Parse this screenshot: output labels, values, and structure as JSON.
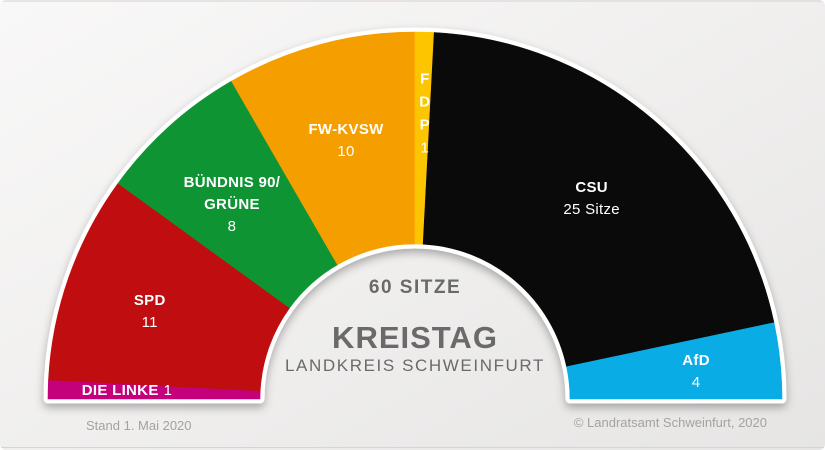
{
  "chart_data": {
    "type": "pie",
    "variant": "half-donut-parliament",
    "title": "KREISTAG",
    "subtitle": "LANDKREIS SCHWEINFURT",
    "total_label": "60 SITZE",
    "total_seats": 60,
    "legend_position": "labels-inside-wedges",
    "series": [
      {
        "name": "DIE LINKE",
        "seats": 1,
        "color": "#C4007B",
        "label_lines": [
          "DIE LINKE"
        ],
        "value_label": "1",
        "label_style": "inline",
        "label_pos": {
          "angle": 179.2,
          "r": 288
        }
      },
      {
        "name": "SPD",
        "seats": 11,
        "color": "#C00D10",
        "label_lines": [
          "SPD"
        ],
        "value_label": "11",
        "label_style": "stack",
        "label_pos": {
          "angle": 162.6,
          "r": 278
        }
      },
      {
        "name": "BÜNDNIS 90/GRÜNE",
        "seats": 8,
        "color": "#0F9434",
        "label_lines": [
          "BÜNDNIS 90/",
          "GRÜNE"
        ],
        "value_label": "8",
        "label_style": "stack",
        "label_pos": {
          "angle": 133.9,
          "r": 264
        }
      },
      {
        "name": "FW-KVSW",
        "seats": 10,
        "color": "#F59E00",
        "label_lines": [
          "FW-KVSW"
        ],
        "value_label": "10",
        "label_style": "stack",
        "label_pos": {
          "angle": 105.2,
          "r": 263
        }
      },
      {
        "name": "FDP",
        "seats": 1,
        "color": "#FDC500",
        "label_lines": [
          "F",
          "D",
          "P"
        ],
        "value_label": "1",
        "label_style": "stack",
        "label_pos": {
          "angle": 88.0,
          "r": 281,
          "lh": 23
        }
      },
      {
        "name": "CSU",
        "seats": 25,
        "color": "#0A0A0A",
        "label_lines": [
          "CSU"
        ],
        "value_label": "25 Sitze",
        "label_style": "stack",
        "label_pos": {
          "angle": 48.0,
          "r": 264
        }
      },
      {
        "name": "AfD",
        "seats": 4,
        "color": "#09ACE4",
        "label_lines": [
          "AfD"
        ],
        "value_label": "4",
        "label_style": "stack",
        "label_pos": {
          "angle": 4.7,
          "r": 282
        }
      }
    ]
  },
  "footer": {
    "stand": "Stand 1. Mai 2020",
    "copyright": "© Landratsamt Schweinfurt, 2020"
  }
}
